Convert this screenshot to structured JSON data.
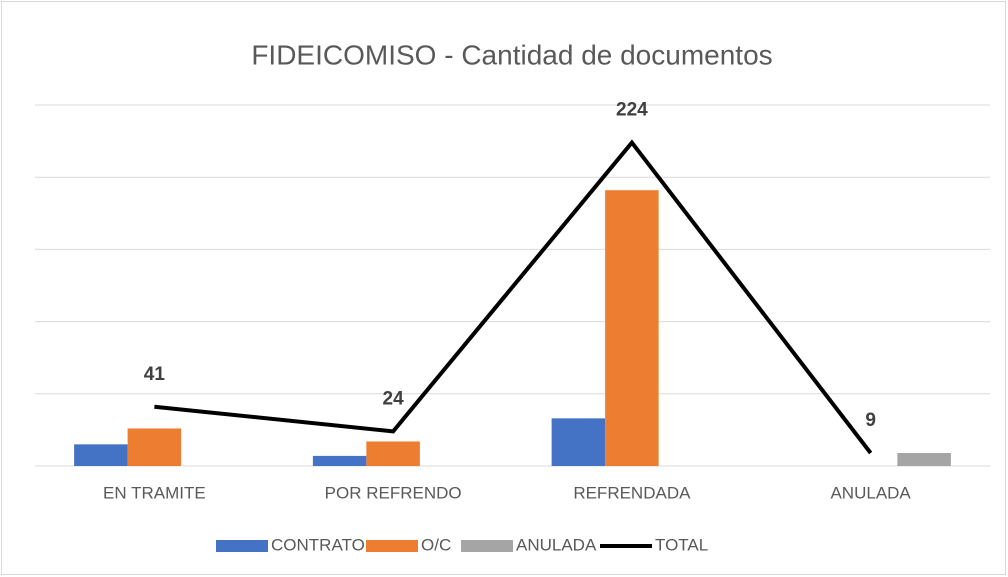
{
  "chart_data": {
    "type": "bar_line",
    "title": "FIDEICOMISO - Cantidad de documentos",
    "categories": [
      "EN TRAMITE",
      "POR REFRENDO",
      "REFRENDADA",
      "ANULADA"
    ],
    "series": [
      {
        "name": "CONTRATO",
        "color": "#4472c4",
        "type": "bar",
        "values": [
          15,
          7,
          33,
          null
        ]
      },
      {
        "name": "O/C",
        "color": "#ed7d31",
        "type": "bar",
        "values": [
          26,
          17,
          191,
          null
        ]
      },
      {
        "name": "ANULADA",
        "color": "#a5a5a5",
        "type": "bar",
        "values": [
          null,
          null,
          null,
          9
        ]
      },
      {
        "name": "TOTAL",
        "color": "#000000",
        "type": "line",
        "values": [
          41,
          24,
          224,
          9
        ]
      }
    ],
    "ylim": [
      0,
      250
    ],
    "yticks": [
      0,
      50,
      100,
      150,
      200,
      250
    ],
    "grid": true,
    "legend": "bottom"
  }
}
